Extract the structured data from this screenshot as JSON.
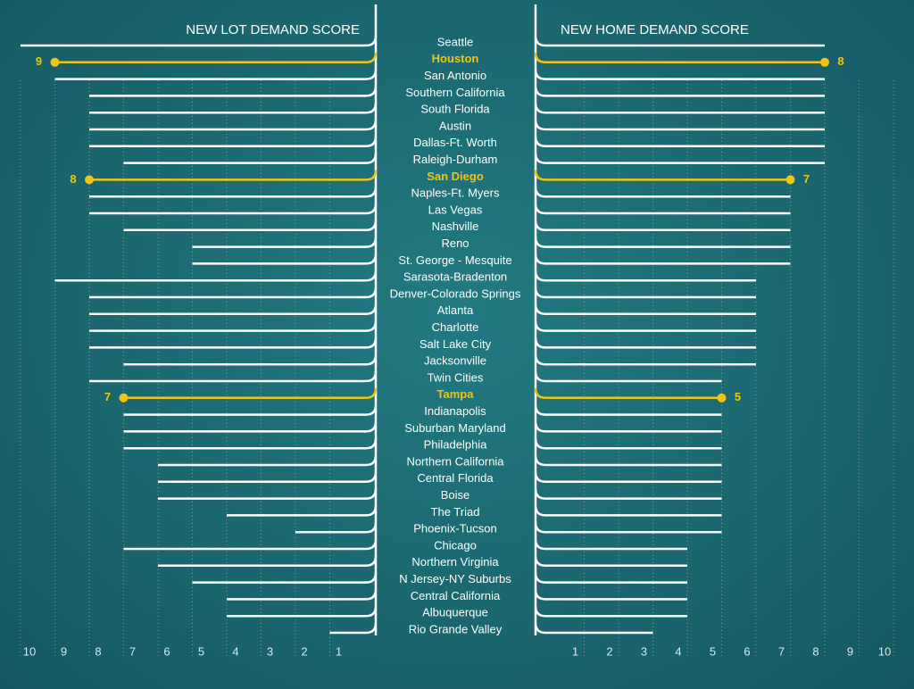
{
  "chart_data": {
    "type": "butterfly",
    "categories": [
      "Seattle",
      "Houston",
      "San Antonio",
      "Southern California",
      "South Florida",
      "Austin",
      "Dallas-Ft. Worth",
      "Raleigh-Durham",
      "San Diego",
      "Naples-Ft. Myers",
      "Las Vegas",
      "Nashville",
      "Reno",
      "St. George - Mesquite",
      "Sarasota-Bradenton",
      "Denver-Colorado Springs",
      "Atlanta",
      "Charlotte",
      "Salt Lake City",
      "Jacksonville",
      "Twin Cities",
      "Tampa",
      "Indianapolis",
      "Suburban Maryland",
      "Philadelphia",
      "Northern California",
      "Central Florida",
      "Boise",
      "The Triad",
      "Phoenix-Tucson",
      "Chicago",
      "Northern Virginia",
      "N Jersey-NY Suburbs",
      "Central California",
      "Albuquerque",
      "Rio Grande Valley"
    ],
    "series": [
      {
        "name": "NEW LOT DEMAND SCORE",
        "color": "#ffffff",
        "values": [
          10,
          9,
          9,
          8,
          8,
          8,
          8,
          7,
          8,
          8,
          8,
          7,
          5,
          5,
          9,
          8,
          8,
          8,
          8,
          7,
          8,
          7,
          7,
          7,
          7,
          6,
          6,
          6,
          4,
          2,
          7,
          6,
          5,
          4,
          4,
          1
        ]
      },
      {
        "name": "NEW HOME DEMAND SCORE",
        "color": "#ffffff",
        "values": [
          8,
          8,
          8,
          8,
          8,
          8,
          8,
          8,
          7,
          7,
          7,
          7,
          7,
          7,
          6,
          6,
          6,
          6,
          6,
          6,
          5,
          5,
          5,
          5,
          5,
          5,
          5,
          5,
          5,
          5,
          4,
          4,
          4,
          4,
          4,
          3
        ]
      }
    ],
    "highlight": [
      1,
      8,
      21
    ],
    "highlight_color": "#f2c40f",
    "xlim": [
      0,
      10
    ],
    "xticks": [
      1,
      2,
      3,
      4,
      5,
      6,
      7,
      8,
      9,
      10
    ],
    "grid": true
  }
}
